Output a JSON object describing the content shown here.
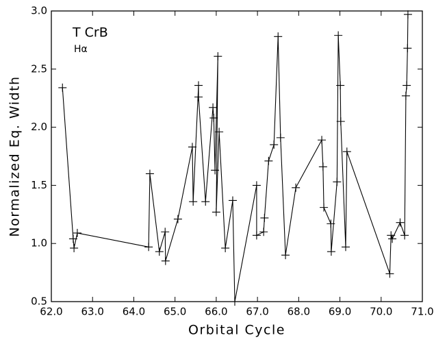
{
  "chart_data": {
    "type": "line",
    "title": "T CrB",
    "subtitle": "Hα",
    "x_label": "Orbital Cycle",
    "y_label": "Normalized Eq. Width",
    "x": [
      62.27,
      62.53,
      62.55,
      62.63,
      64.36,
      64.39,
      64.62,
      64.76,
      64.77,
      65.07,
      65.42,
      65.44,
      65.57,
      65.57,
      65.74,
      65.92,
      65.94,
      65.97,
      66.04,
      66.0,
      66.07,
      66.22,
      66.4,
      66.45,
      66.98,
      66.98,
      67.15,
      67.17,
      67.27,
      67.4,
      67.5,
      67.56,
      67.68,
      67.93,
      68.56,
      68.59,
      68.61,
      68.78,
      68.79,
      68.93,
      68.96,
      69.01,
      69.02,
      69.14,
      69.17,
      70.21,
      70.24,
      70.27,
      70.46,
      70.57,
      70.6,
      70.62,
      70.64,
      70.65
    ],
    "series": [
      {
        "color": "#000000",
        "values": [
          2.34,
          1.04,
          0.96,
          1.09,
          0.97,
          1.6,
          0.93,
          1.1,
          0.85,
          1.21,
          1.83,
          1.36,
          2.36,
          2.26,
          1.36,
          2.17,
          2.08,
          1.63,
          2.61,
          1.27,
          1.96,
          0.96,
          1.37,
          0.5,
          1.5,
          1.07,
          1.1,
          1.22,
          1.71,
          1.85,
          2.78,
          1.91,
          0.9,
          1.48,
          1.89,
          1.66,
          1.31,
          1.17,
          0.93,
          1.53,
          2.79,
          2.36,
          2.05,
          0.97,
          1.79,
          0.74,
          1.07,
          1.04,
          1.18,
          1.07,
          2.27,
          2.36,
          2.68,
          2.97
        ]
      }
    ],
    "xlim": [
      62,
      71
    ],
    "ylim": [
      0.5,
      3.0
    ],
    "xticks": [
      {
        "value": 62,
        "label": "62.0"
      },
      {
        "value": 63,
        "label": "63.0"
      },
      {
        "value": 64,
        "label": "64.0"
      },
      {
        "value": 65,
        "label": "65.0"
      },
      {
        "value": 66,
        "label": "66.0"
      },
      {
        "value": 67,
        "label": "67.0"
      },
      {
        "value": 68,
        "label": "68.0"
      },
      {
        "value": 69,
        "label": "69.0"
      },
      {
        "value": 70,
        "label": "70.0"
      },
      {
        "value": 71,
        "label": "71.0"
      }
    ],
    "yticks": [
      0.5,
      {
        "value": 1,
        "label": "1.0"
      },
      1.5,
      {
        "value": 2,
        "label": "2.0"
      },
      2.5,
      {
        "value": 3,
        "label": "3.0"
      }
    ],
    "grid": false
  }
}
